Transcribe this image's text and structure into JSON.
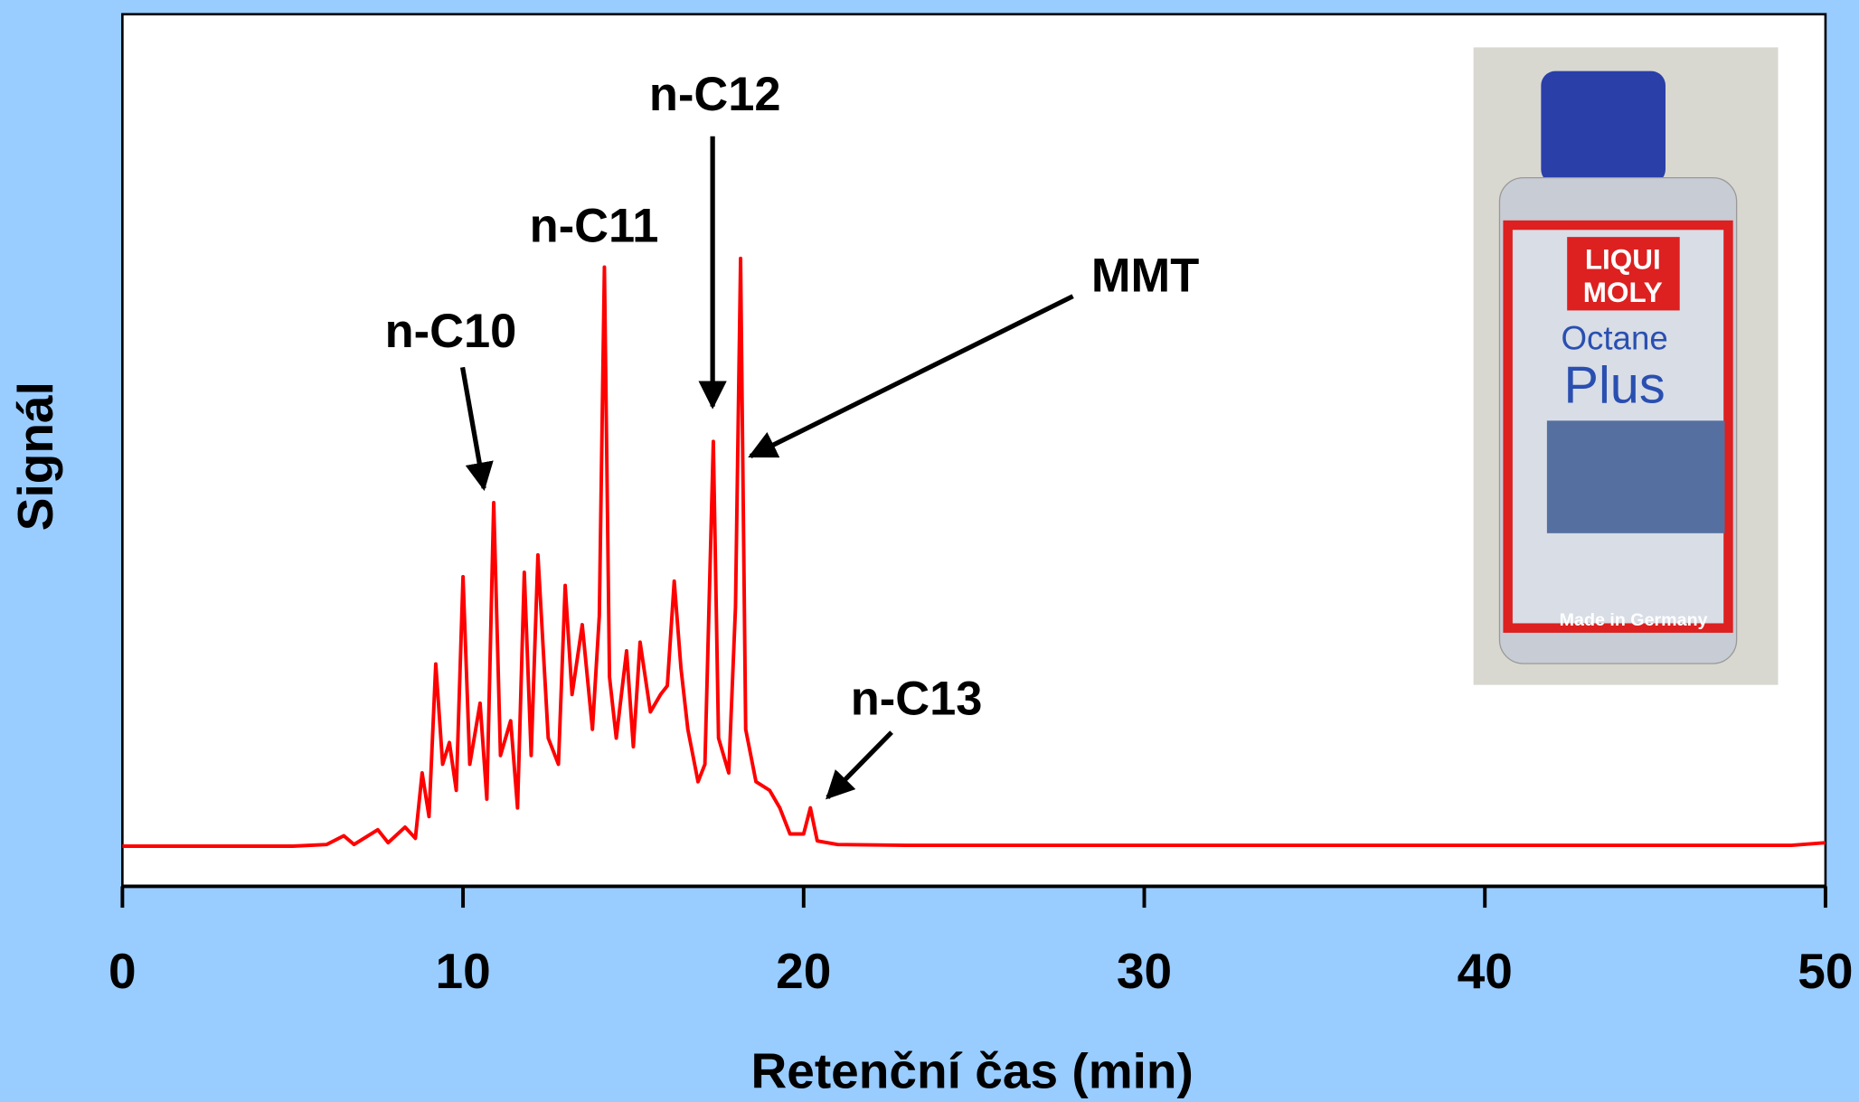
{
  "chart_data": {
    "type": "line",
    "x_label": "Retenční čas (min)",
    "y_label": "Signál",
    "xlim": [
      0,
      50
    ],
    "xticks": [
      0,
      10,
      20,
      30,
      40,
      50
    ],
    "ylim": [
      0,
      100
    ],
    "color": "#ff0000",
    "x": [
      0,
      5,
      6,
      6.5,
      6.8,
      7.5,
      7.8,
      8.3,
      8.6,
      8.8,
      9.0,
      9.2,
      9.4,
      9.6,
      9.8,
      10.0,
      10.2,
      10.5,
      10.7,
      10.9,
      11.1,
      11.4,
      11.6,
      11.8,
      12.0,
      12.2,
      12.5,
      12.8,
      13.0,
      13.2,
      13.5,
      13.8,
      14.0,
      14.15,
      14.3,
      14.5,
      14.8,
      15.0,
      15.2,
      15.5,
      15.8,
      16.0,
      16.2,
      16.4,
      16.6,
      16.9,
      17.1,
      17.35,
      17.5,
      17.8,
      18.0,
      18.15,
      18.3,
      18.6,
      19.0,
      19.3,
      19.6,
      20.0,
      20.2,
      20.4,
      21,
      23,
      30,
      40,
      49,
      50
    ],
    "values": [
      4.6,
      4.6,
      4.8,
      5.8,
      4.8,
      6.5,
      5,
      6.8,
      5.5,
      13,
      8,
      25.5,
      14,
      16.5,
      11,
      35.5,
      14,
      21,
      10,
      44,
      15,
      19,
      9,
      36,
      15,
      38,
      17,
      14,
      34.5,
      22,
      30,
      18,
      31,
      71,
      24,
      17,
      27,
      16,
      28,
      20,
      22,
      23,
      35,
      25,
      18,
      12,
      14,
      51,
      17,
      13,
      32,
      72,
      18,
      12,
      11,
      9,
      6,
      6,
      9,
      5.2,
      4.8,
      4.7,
      4.7,
      4.7,
      4.7,
      5
    ],
    "annotations": [
      "n-C10",
      "n-C11",
      "n-C12",
      "MMT",
      "n-C13"
    ],
    "inset": {
      "brand_1": "LIQUI",
      "brand_2": "MOLY",
      "product_1": "Octane",
      "product_2": "Plus",
      "origin": "Made in Germany"
    }
  }
}
